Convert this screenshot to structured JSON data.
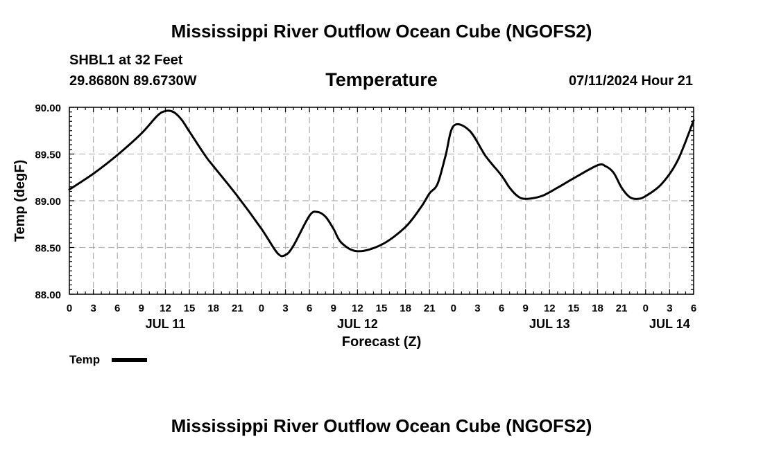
{
  "header": {
    "title": "Mississippi River Outflow Ocean Cube (NGOFS2)",
    "station": "SHBL1 at 32 Feet",
    "coordinates": "29.8680N  89.6730W",
    "subtitle": "Temperature",
    "datetime": "07/11/2024 Hour 21"
  },
  "footer": {
    "title": "Mississippi River Outflow Ocean Cube (NGOFS2)"
  },
  "chart_data": {
    "type": "line",
    "title": "Temperature",
    "xlabel": "Forecast (Z)",
    "ylabel": "Temp (degF)",
    "ylim": [
      88.0,
      90.0
    ],
    "xlim": [
      0,
      78
    ],
    "x_units": "hours since JUL 11 00Z",
    "grid": true,
    "y_ticks": [
      "88.00",
      "88.50",
      "89.00",
      "89.50",
      "90.00"
    ],
    "y_tick_values": [
      88.0,
      88.5,
      89.0,
      89.5,
      90.0
    ],
    "x_tick_labels": [
      "0",
      "3",
      "6",
      "9",
      "12",
      "15",
      "18",
      "21",
      "0",
      "3",
      "6",
      "9",
      "12",
      "15",
      "18",
      "21",
      "0",
      "3",
      "6",
      "9",
      "12",
      "15",
      "18",
      "21",
      "0",
      "3",
      "6"
    ],
    "day_labels": [
      {
        "label": "JUL 11",
        "hour": 12
      },
      {
        "label": "JUL 12",
        "hour": 36
      },
      {
        "label": "JUL 13",
        "hour": 60
      },
      {
        "label": "JUL 14",
        "hour": 75
      }
    ],
    "legend": [
      {
        "name": "Temp",
        "color": "#000000"
      }
    ],
    "legend_position": "bottom-left",
    "series": [
      {
        "name": "Temp",
        "color": "#000000",
        "x": [
          0,
          3,
          6,
          9,
          11,
          12,
          13,
          14,
          15,
          17,
          18,
          21,
          24,
          26,
          27,
          28,
          30,
          31,
          32,
          33,
          34,
          36,
          39,
          42,
          44,
          45,
          46,
          47,
          48,
          50,
          52,
          54,
          55,
          56,
          57,
          59,
          61,
          63,
          66,
          67,
          68,
          69,
          70,
          71,
          72,
          74,
          76,
          78
        ],
        "y": [
          89.12,
          89.29,
          89.49,
          89.72,
          89.91,
          89.96,
          89.95,
          89.87,
          89.74,
          89.48,
          89.37,
          89.05,
          88.7,
          88.44,
          88.42,
          88.52,
          88.84,
          88.88,
          88.83,
          88.7,
          88.55,
          88.46,
          88.53,
          88.72,
          88.94,
          89.08,
          89.18,
          89.48,
          89.8,
          89.75,
          89.48,
          89.27,
          89.14,
          89.05,
          89.02,
          89.05,
          89.14,
          89.24,
          89.38,
          89.37,
          89.3,
          89.14,
          89.04,
          89.02,
          89.05,
          89.18,
          89.43,
          89.86
        ]
      }
    ]
  }
}
